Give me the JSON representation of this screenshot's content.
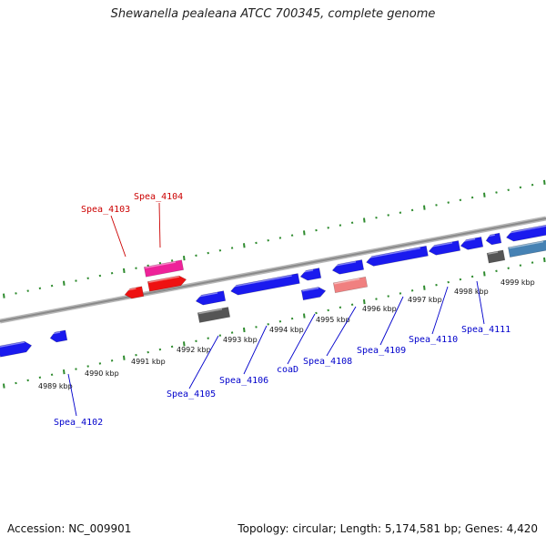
{
  "title": "Shewanella pealeana ATCC 700345, complete genome",
  "footer": {
    "accession": "Accession: NC_009901",
    "info": "Topology: circular; Length: 5,174,581 bp; Genes: 4,420"
  },
  "colors": {
    "backbone": "#8a8a8a",
    "tick": "#2e8b2e",
    "forward_label": "#cc0000",
    "reverse_label": "#0000cc",
    "gene_blue": "#1a1aee",
    "gene_red": "#ee1111",
    "gene_magenta": "#ee2299",
    "gene_salmon": "#f08080",
    "gene_gray": "#555555",
    "gene_steel": "#4682b4"
  },
  "ticks": [
    "4989 kbp",
    "4990 kbp",
    "4991 kbp",
    "4992 kbp",
    "4993 kbp",
    "4994 kbp",
    "4995 kbp",
    "4996 kbp",
    "4997 kbp",
    "4998 kbp",
    "4999 kbp"
  ],
  "genes": [
    {
      "label": "Spea_4102",
      "color": "blue",
      "strand": "reverse"
    },
    {
      "label": "Spea_4103",
      "color": "red",
      "strand": "forward"
    },
    {
      "label": "Spea_4104",
      "color": "magenta",
      "strand": "forward"
    },
    {
      "label": "Spea_4105",
      "color": "blue",
      "strand": "reverse"
    },
    {
      "label": "Spea_4106",
      "color": "blue",
      "strand": "reverse"
    },
    {
      "label": "coaD",
      "color": "blue",
      "strand": "reverse"
    },
    {
      "label": "Spea_4108",
      "color": "salmon",
      "strand": "reverse"
    },
    {
      "label": "Spea_4109",
      "color": "blue",
      "strand": "reverse"
    },
    {
      "label": "Spea_4110",
      "color": "blue",
      "strand": "reverse"
    },
    {
      "label": "Spea_4111",
      "color": "gray",
      "strand": "reverse"
    }
  ]
}
